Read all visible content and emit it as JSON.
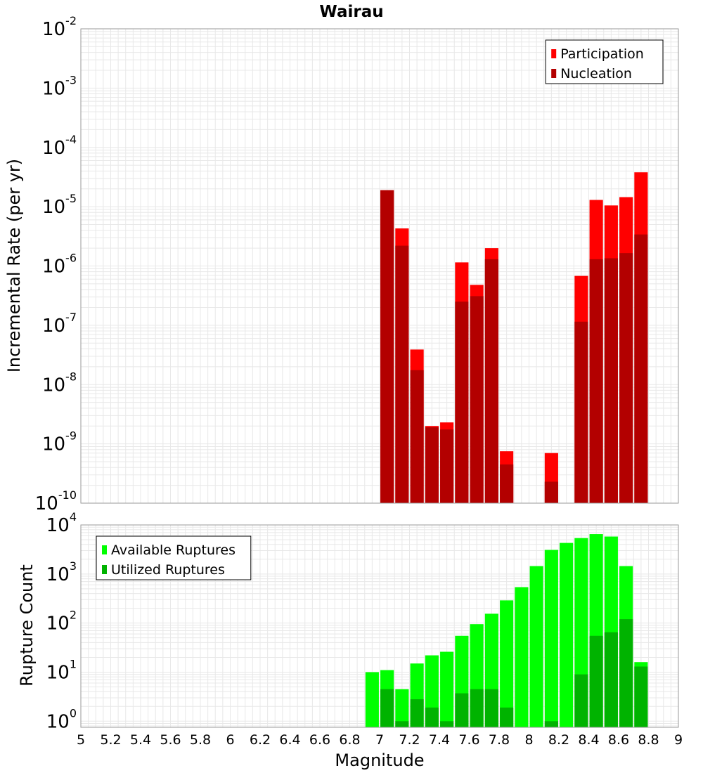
{
  "chart_data": [
    {
      "type": "bar",
      "title": "Wairau",
      "ylabel": "Incremental Rate (per yr)",
      "xlabel": "",
      "yscale": "log",
      "xlim": [
        5,
        9
      ],
      "ylim": [
        1e-10,
        0.01
      ],
      "grid": true,
      "legend_position": "top-right",
      "bar_width": 0.09,
      "series": [
        {
          "name": "Participation",
          "color": "#ff0000",
          "x": [
            7.05,
            7.15,
            7.25,
            7.35,
            7.45,
            7.55,
            7.65,
            7.75,
            7.85,
            8.15,
            8.35,
            8.45,
            8.55,
            8.65,
            8.75
          ],
          "values": [
            1.9e-05,
            4.3e-06,
            3.9e-08,
            2e-09,
            2.3e-09,
            1.15e-06,
            4.8e-07,
            2e-06,
            7.5e-10,
            7e-10,
            6.8e-07,
            1.3e-05,
            1.05e-05,
            1.45e-05,
            3.8e-05
          ]
        },
        {
          "name": "Nucleation",
          "color": "#b30000",
          "x": [
            7.05,
            7.15,
            7.25,
            7.35,
            7.45,
            7.55,
            7.65,
            7.75,
            7.85,
            8.15,
            8.35,
            8.45,
            8.55,
            8.65,
            8.75
          ],
          "values": [
            1.9e-05,
            2.2e-06,
            1.75e-08,
            1.9e-09,
            1.75e-09,
            2.5e-07,
            3.1e-07,
            1.3e-06,
            4.5e-10,
            2.3e-10,
            1.15e-07,
            1.3e-06,
            1.35e-06,
            1.65e-06,
            3.4e-06
          ]
        }
      ]
    },
    {
      "type": "bar",
      "title": "",
      "ylabel": "Rupture Count",
      "xlabel": "Magnitude",
      "yscale": "log",
      "xlim": [
        5,
        9
      ],
      "ylim": [
        0.75,
        10000
      ],
      "grid": true,
      "legend_position": "top-left",
      "bar_width": 0.09,
      "x_ticks": [
        "5",
        "5.2",
        "5.4",
        "5.6",
        "5.8",
        "6",
        "6.2",
        "6.4",
        "6.6",
        "6.8",
        "7",
        "7.2",
        "7.4",
        "7.6",
        "7.8",
        "8",
        "8.2",
        "8.4",
        "8.6",
        "8.8",
        "9"
      ],
      "series": [
        {
          "name": "Available Ruptures",
          "color": "#00ff00",
          "x": [
            6.95,
            7.05,
            7.15,
            7.25,
            7.35,
            7.45,
            7.55,
            7.65,
            7.75,
            7.85,
            7.95,
            8.05,
            8.15,
            8.25,
            8.35,
            8.45,
            8.55,
            8.65,
            8.75
          ],
          "values": [
            10,
            11,
            4.5,
            15,
            22,
            26,
            55,
            95,
            155,
            290,
            540,
            1450,
            3100,
            4300,
            5400,
            6500,
            5800,
            1450,
            16
          ]
        },
        {
          "name": "Utilized Ruptures",
          "color": "#00b300",
          "x": [
            7.05,
            7.15,
            7.25,
            7.35,
            7.45,
            7.55,
            7.65,
            7.75,
            7.85,
            8.15,
            8.35,
            8.45,
            8.55,
            8.65,
            8.75
          ],
          "values": [
            4.5,
            1,
            2.8,
            1.9,
            1,
            3.7,
            4.5,
            4.5,
            1.9,
            1,
            9,
            55,
            65,
            120,
            13
          ]
        }
      ]
    }
  ]
}
